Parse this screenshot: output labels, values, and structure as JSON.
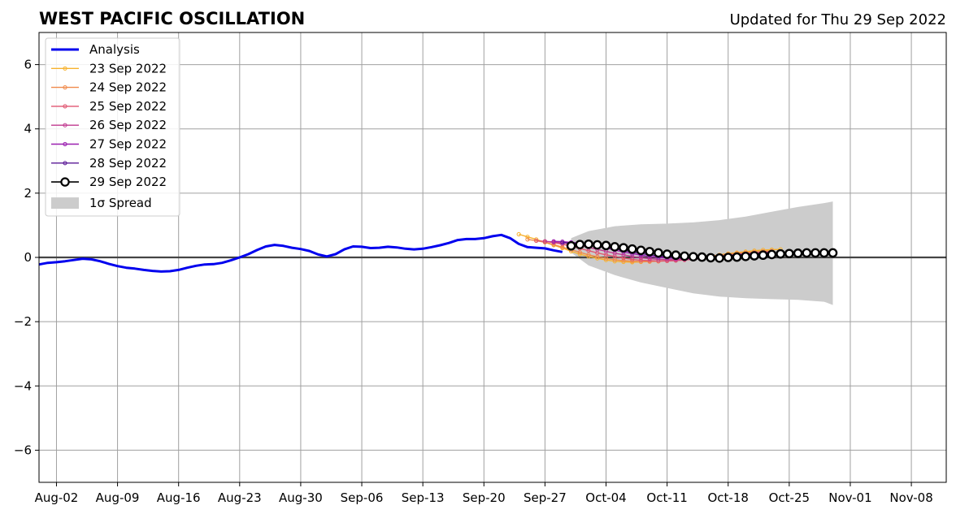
{
  "chart_data": {
    "type": "line",
    "title": "WEST PACIFIC OSCILLATION",
    "subtitle": "Updated for Thu 29 Sep 2022",
    "xlabel": "",
    "ylabel": "",
    "x_ticks": [
      "Aug-02",
      "Aug-09",
      "Aug-16",
      "Aug-23",
      "Aug-30",
      "Sep-06",
      "Sep-13",
      "Sep-20",
      "Sep-27",
      "Oct-04",
      "Oct-11",
      "Oct-18",
      "Oct-25",
      "Nov-01",
      "Nov-08"
    ],
    "y_ticks": [
      "−6",
      "−4",
      "−2",
      "0",
      "2",
      "4",
      "6"
    ],
    "ylim": [
      -7,
      7
    ],
    "xlim_days": [
      -2,
      102
    ],
    "grid": true,
    "legend_position": "top-left",
    "spread_label": "1σ Spread",
    "colors": {
      "analysis": "#0000ee",
      "spread": "#cccccc",
      "zero_line": "#444444",
      "grid": "#a0a0a0"
    },
    "analysis": {
      "name": "Analysis",
      "x": [
        -2,
        -1,
        0,
        1,
        2,
        3,
        4,
        5,
        6,
        7,
        8,
        9,
        10,
        11,
        12,
        13,
        14,
        15,
        16,
        17,
        18,
        19,
        20,
        21,
        22,
        23,
        24,
        25,
        26,
        27,
        28,
        29,
        30,
        31,
        32,
        33,
        34,
        35,
        36,
        37,
        38,
        39,
        40,
        41,
        42,
        43,
        44,
        45,
        46,
        47,
        48,
        49,
        50,
        51,
        52,
        53,
        54,
        55,
        56,
        57,
        58
      ],
      "y": [
        -0.22,
        -0.17,
        -0.15,
        -0.12,
        -0.08,
        -0.04,
        -0.06,
        -0.12,
        -0.2,
        -0.27,
        -0.32,
        -0.35,
        -0.39,
        -0.42,
        -0.44,
        -0.43,
        -0.39,
        -0.32,
        -0.26,
        -0.22,
        -0.21,
        -0.17,
        -0.09,
        0.0,
        0.1,
        0.23,
        0.34,
        0.39,
        0.36,
        0.3,
        0.26,
        0.2,
        0.09,
        0.03,
        0.1,
        0.25,
        0.34,
        0.33,
        0.29,
        0.3,
        0.33,
        0.31,
        0.27,
        0.25,
        0.27,
        0.32,
        0.38,
        0.45,
        0.54,
        0.57,
        0.57,
        0.6,
        0.66,
        0.7,
        0.6,
        0.42,
        0.32,
        0.3,
        0.28,
        0.22,
        0.17
      ]
    },
    "forecasts": [
      {
        "name": "23 Sep 2022",
        "color": "#f7b22e",
        "x_start": 53,
        "y": [
          0.72,
          0.64,
          0.56,
          0.47,
          0.38,
          0.29,
          0.19,
          0.1,
          0.03,
          -0.03,
          -0.08,
          -0.12,
          -0.14,
          -0.15,
          -0.14,
          -0.13,
          -0.12,
          -0.1,
          -0.08,
          -0.05,
          -0.02,
          0.01,
          0.04,
          0.08,
          0.12,
          0.15,
          0.18,
          0.21,
          0.23,
          0.24,
          0.25
        ]
      },
      {
        "name": "24 Sep 2022",
        "color": "#f08a4b",
        "x_start": 54,
        "y": [
          0.56,
          0.52,
          0.47,
          0.4,
          0.32,
          0.24,
          0.16,
          0.08,
          0.02,
          -0.03,
          -0.07,
          -0.1,
          -0.12,
          -0.13,
          -0.13,
          -0.12,
          -0.1,
          -0.08,
          -0.05,
          -0.02,
          0.01,
          0.04,
          0.07,
          0.1,
          0.13,
          0.15,
          0.17,
          0.19,
          0.2
        ]
      },
      {
        "name": "25 Sep 2022",
        "color": "#e05570",
        "x_start": 55,
        "y": [
          0.52,
          0.5,
          0.46,
          0.41,
          0.35,
          0.28,
          0.21,
          0.14,
          0.08,
          0.03,
          -0.02,
          -0.06,
          -0.09,
          -0.1,
          -0.11,
          -0.11,
          -0.1,
          -0.08,
          -0.06,
          -0.03,
          0.0,
          0.03,
          0.06,
          0.09,
          0.12,
          0.14,
          0.16,
          0.18
        ]
      },
      {
        "name": "26 Sep 2022",
        "color": "#c0398f",
        "x_start": 56,
        "y": [
          0.5,
          0.48,
          0.45,
          0.42,
          0.37,
          0.31,
          0.25,
          0.19,
          0.13,
          0.08,
          0.03,
          -0.01,
          -0.04,
          -0.06,
          -0.07,
          -0.07,
          -0.06,
          -0.05,
          -0.03,
          0.0,
          0.03,
          0.06,
          0.09,
          0.11,
          0.13,
          0.15,
          0.17
        ]
      },
      {
        "name": "27 Sep 2022",
        "color": "#9a1fb0",
        "x_start": 57,
        "y": [
          0.5,
          0.49,
          0.47,
          0.44,
          0.4,
          0.35,
          0.29,
          0.23,
          0.17,
          0.12,
          0.07,
          0.03,
          0.0,
          -0.02,
          -0.03,
          -0.03,
          -0.02,
          -0.01,
          0.01,
          0.03,
          0.05,
          0.07,
          0.09,
          0.11,
          0.13,
          0.14
        ]
      },
      {
        "name": "28 Sep 2022",
        "color": "#5a1896",
        "x_start": 58,
        "y": [
          0.46,
          0.45,
          0.43,
          0.4,
          0.36,
          0.32,
          0.27,
          0.22,
          0.17,
          0.12,
          0.08,
          0.04,
          0.02,
          0.0,
          -0.01,
          -0.01,
          0.0,
          0.01,
          0.03,
          0.05,
          0.07,
          0.09,
          0.11,
          0.12,
          0.13
        ]
      },
      {
        "name": "29 Sep 2022",
        "color": "#000000",
        "x_start": 59,
        "y": [
          0.36,
          0.4,
          0.41,
          0.39,
          0.37,
          0.33,
          0.3,
          0.26,
          0.22,
          0.18,
          0.14,
          0.1,
          0.07,
          0.04,
          0.02,
          0.01,
          -0.01,
          -0.02,
          0.0,
          0.01,
          0.03,
          0.05,
          0.07,
          0.09,
          0.11,
          0.12,
          0.13,
          0.14,
          0.14,
          0.14,
          0.14
        ]
      }
    ],
    "spread": {
      "x": [
        59,
        61,
        64,
        67,
        70,
        73,
        76,
        79,
        82,
        85,
        88,
        89
      ],
      "upper": [
        0.6,
        0.82,
        0.97,
        1.03,
        1.05,
        1.09,
        1.16,
        1.27,
        1.42,
        1.57,
        1.69,
        1.74
      ],
      "lower": [
        0.15,
        -0.25,
        -0.55,
        -0.78,
        -0.95,
        -1.12,
        -1.22,
        -1.27,
        -1.3,
        -1.32,
        -1.38,
        -1.48
      ]
    }
  }
}
